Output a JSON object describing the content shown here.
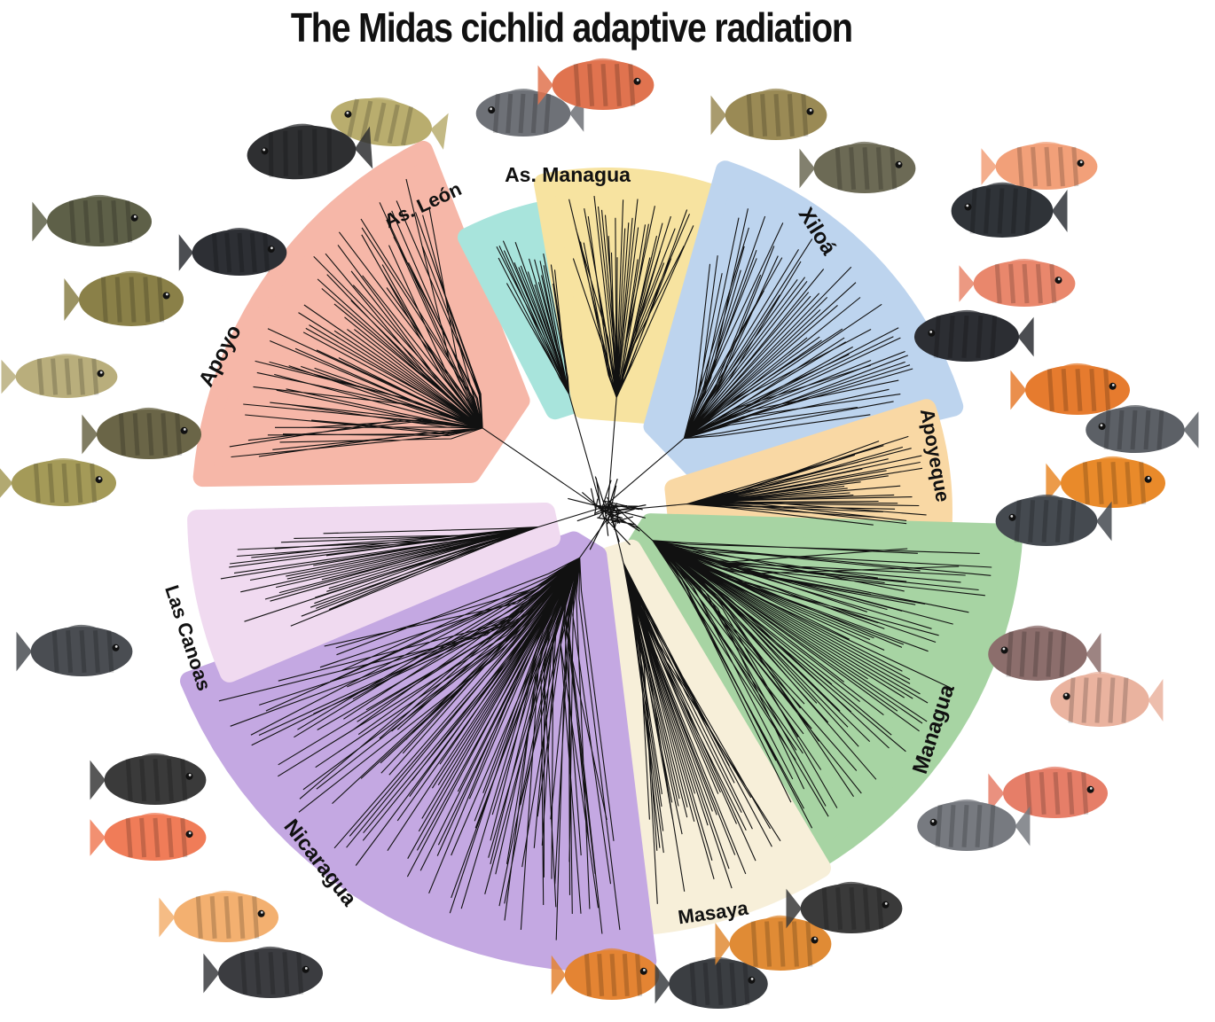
{
  "title": "The Midas cichlid adaptive radiation",
  "clades": [
    {
      "name": "Apoyo",
      "color": "#f6b7a8"
    },
    {
      "name": "As. León",
      "color": "#a8e4dc"
    },
    {
      "name": "As. Managua",
      "color": "#f7e3a0"
    },
    {
      "name": "Xiloá",
      "color": "#bdd4ee"
    },
    {
      "name": "Apoyeque",
      "color": "#f9d8a4"
    },
    {
      "name": "Managua",
      "color": "#a7d4a3"
    },
    {
      "name": "Masaya",
      "color": "#f7efd9"
    },
    {
      "name": "Nicaragua",
      "color": "#c4a8e2"
    },
    {
      "name": "Las Canoas",
      "color": "#f0daf0"
    }
  ]
}
